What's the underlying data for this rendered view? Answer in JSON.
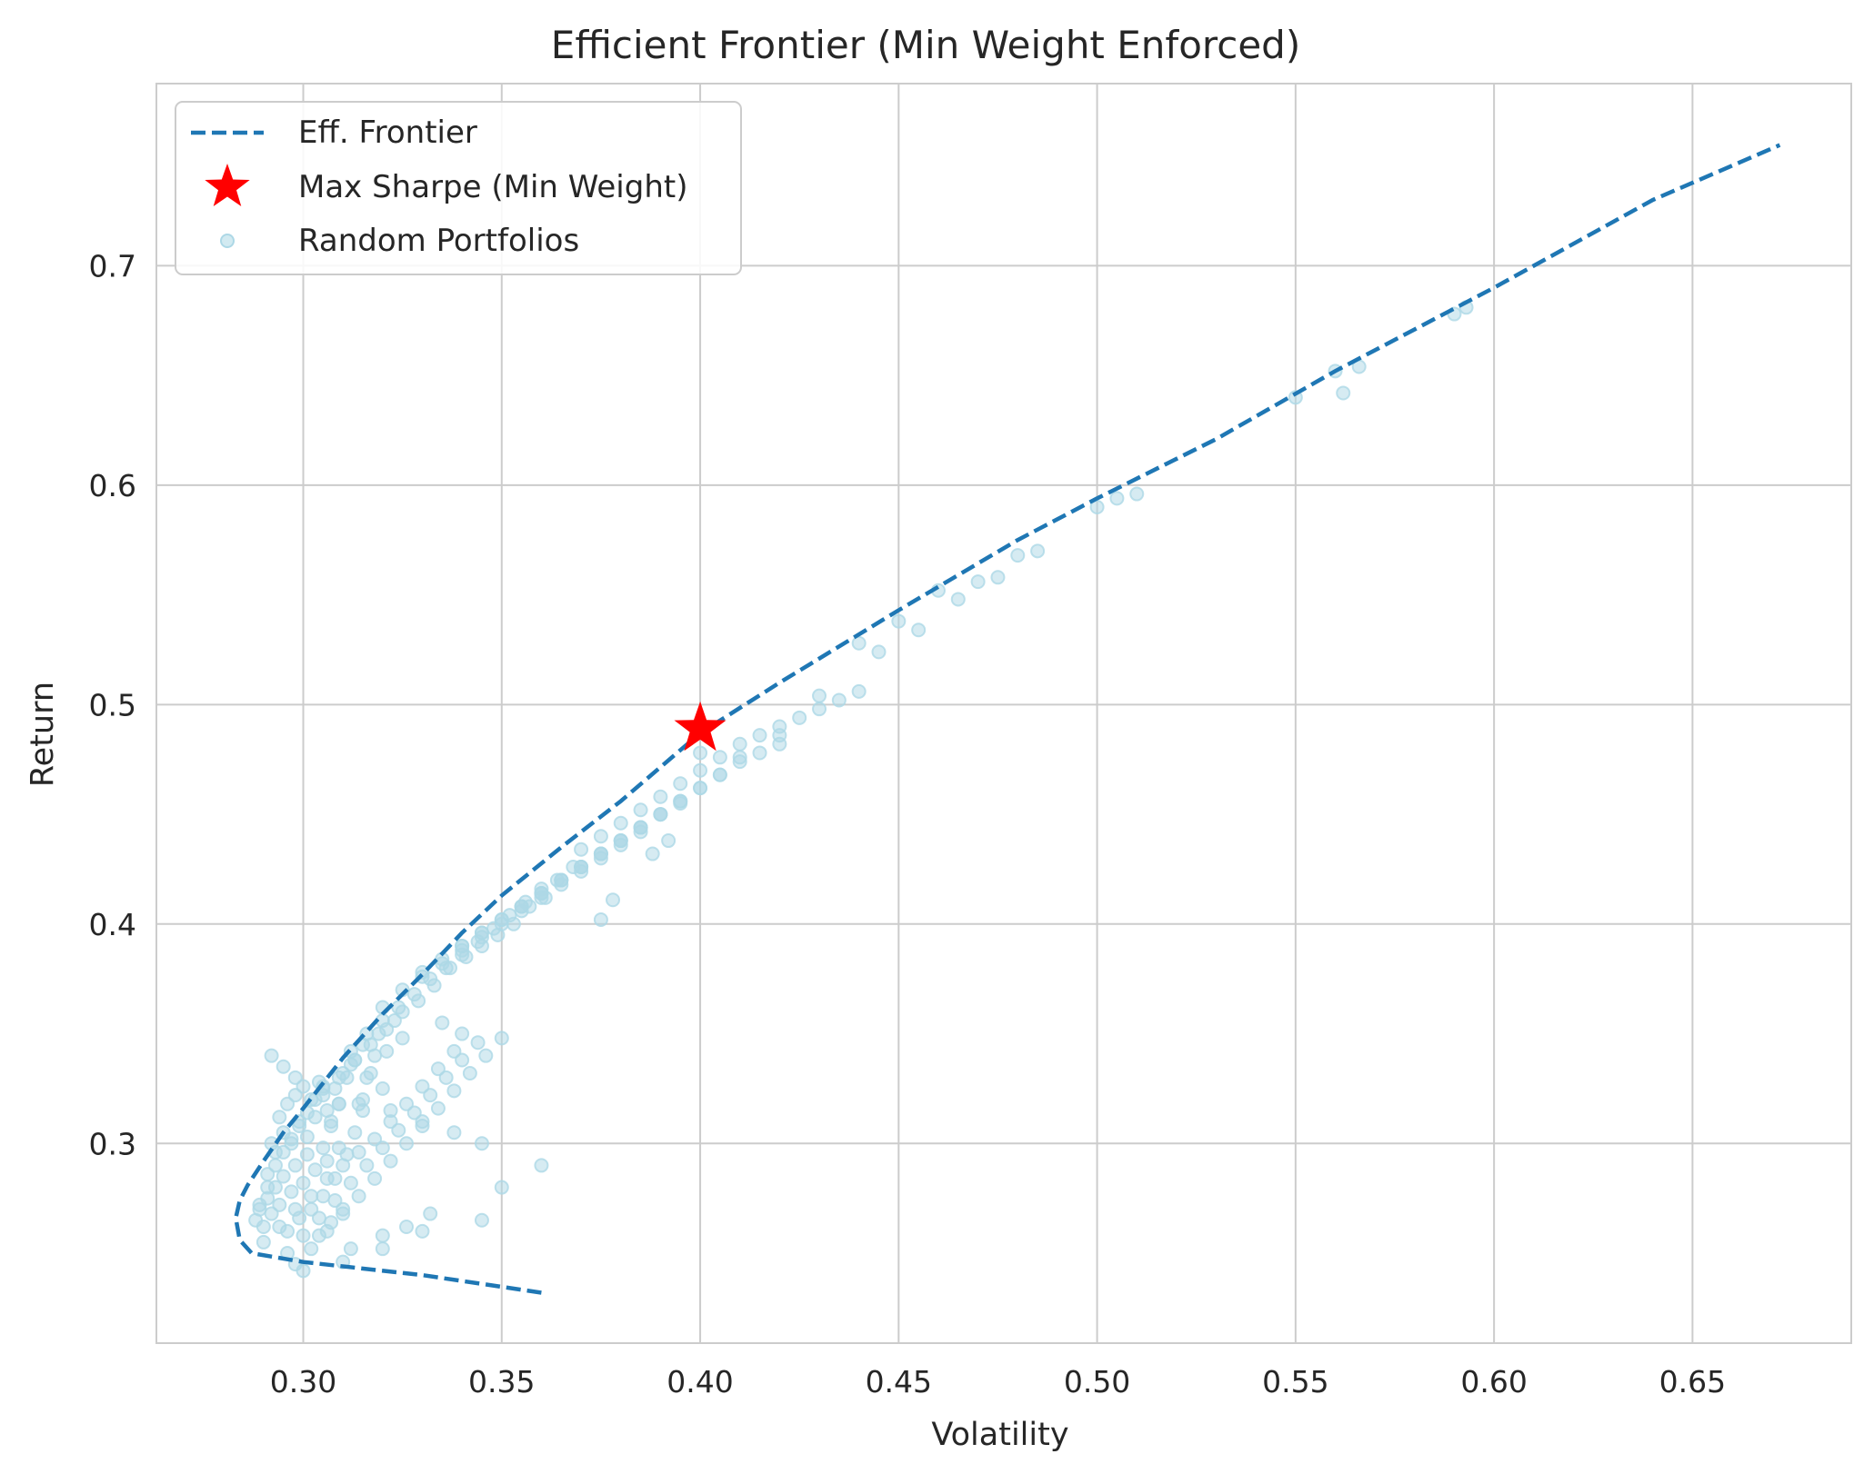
{
  "chart_data": {
    "type": "scatter",
    "title": "Efficient Frontier (Min Weight Enforced)",
    "xlabel": "Volatility",
    "ylabel": "Return",
    "xlim": [
      0.263,
      0.69
    ],
    "ylim": [
      0.209,
      0.783
    ],
    "xticks": [
      0.3,
      0.35,
      0.4,
      0.45,
      0.5,
      0.55,
      0.6,
      0.65
    ],
    "xtick_labels": [
      "0.30",
      "0.35",
      "0.40",
      "0.45",
      "0.50",
      "0.55",
      "0.60",
      "0.65"
    ],
    "yticks": [
      0.3,
      0.4,
      0.5,
      0.6,
      0.7
    ],
    "ytick_labels": [
      "0.3",
      "0.4",
      "0.5",
      "0.6",
      "0.7"
    ],
    "grid": true,
    "legend_position": "top-left",
    "legend": [
      {
        "label": "Eff. Frontier",
        "marker": "dashed-line",
        "color": "#1f77b4"
      },
      {
        "label": "Max Sharpe (Min Weight)",
        "marker": "star",
        "color": "#ff0000"
      },
      {
        "label": "Random Portfolios",
        "marker": "circle",
        "color": "#add8e6"
      }
    ],
    "series": [
      {
        "name": "Eff. Frontier",
        "kind": "line",
        "style": "dashed",
        "color": "#1f77b4",
        "x": [
          0.36,
          0.33,
          0.3,
          0.287,
          0.284,
          0.283,
          0.284,
          0.286,
          0.29,
          0.295,
          0.3,
          0.31,
          0.32,
          0.33,
          0.34,
          0.35,
          0.365,
          0.38,
          0.4,
          0.42,
          0.45,
          0.48,
          0.5,
          0.53,
          0.56,
          0.6,
          0.64,
          0.672
        ],
        "y": [
          0.232,
          0.24,
          0.246,
          0.25,
          0.256,
          0.266,
          0.274,
          0.281,
          0.292,
          0.305,
          0.316,
          0.339,
          0.359,
          0.377,
          0.396,
          0.413,
          0.435,
          0.456,
          0.487,
          0.51,
          0.543,
          0.575,
          0.594,
          0.621,
          0.652,
          0.69,
          0.73,
          0.755
        ]
      },
      {
        "name": "Max Sharpe (Min Weight)",
        "kind": "star",
        "color": "#ff0000",
        "x": [
          0.4
        ],
        "y": [
          0.489
        ]
      },
      {
        "name": "Random Portfolios",
        "kind": "scatter",
        "color": "#add8e6",
        "x": [
          0.288,
          0.289,
          0.29,
          0.291,
          0.292,
          0.293,
          0.294,
          0.295,
          0.296,
          0.297,
          0.298,
          0.299,
          0.3,
          0.301,
          0.302,
          0.303,
          0.304,
          0.305,
          0.306,
          0.307,
          0.308,
          0.309,
          0.31,
          0.291,
          0.293,
          0.295,
          0.297,
          0.299,
          0.301,
          0.303,
          0.305,
          0.307,
          0.309,
          0.311,
          0.313,
          0.315,
          0.292,
          0.294,
          0.296,
          0.298,
          0.3,
          0.302,
          0.304,
          0.306,
          0.308,
          0.31,
          0.312,
          0.314,
          0.316,
          0.318,
          0.32,
          0.289,
          0.291,
          0.293,
          0.295,
          0.297,
          0.299,
          0.301,
          0.303,
          0.305,
          0.307,
          0.309,
          0.311,
          0.313,
          0.315,
          0.317,
          0.319,
          0.321,
          0.323,
          0.325,
          0.29,
          0.294,
          0.298,
          0.302,
          0.306,
          0.31,
          0.314,
          0.318,
          0.322,
          0.326,
          0.33,
          0.334,
          0.338,
          0.296,
          0.3,
          0.304,
          0.308,
          0.312,
          0.316,
          0.32,
          0.324,
          0.328,
          0.332,
          0.336,
          0.34,
          0.344,
          0.298,
          0.302,
          0.306,
          0.31,
          0.314,
          0.318,
          0.322,
          0.326,
          0.33,
          0.334,
          0.338,
          0.342,
          0.346,
          0.35,
          0.305,
          0.309,
          0.313,
          0.317,
          0.321,
          0.325,
          0.329,
          0.333,
          0.337,
          0.341,
          0.345,
          0.349,
          0.353,
          0.357,
          0.361,
          0.312,
          0.316,
          0.32,
          0.324,
          0.328,
          0.332,
          0.336,
          0.34,
          0.344,
          0.348,
          0.352,
          0.356,
          0.36,
          0.364,
          0.368,
          0.32,
          0.325,
          0.33,
          0.335,
          0.34,
          0.345,
          0.35,
          0.355,
          0.36,
          0.365,
          0.37,
          0.375,
          0.38,
          0.385,
          0.33,
          0.335,
          0.34,
          0.345,
          0.35,
          0.355,
          0.36,
          0.365,
          0.37,
          0.375,
          0.38,
          0.385,
          0.39,
          0.395,
          0.34,
          0.345,
          0.35,
          0.355,
          0.36,
          0.365,
          0.37,
          0.375,
          0.38,
          0.385,
          0.39,
          0.395,
          0.4,
          0.405,
          0.355,
          0.36,
          0.365,
          0.37,
          0.375,
          0.38,
          0.385,
          0.39,
          0.395,
          0.4,
          0.405,
          0.41,
          0.415,
          0.42,
          0.37,
          0.375,
          0.38,
          0.385,
          0.39,
          0.395,
          0.4,
          0.405,
          0.41,
          0.415,
          0.42,
          0.425,
          0.43,
          0.435,
          0.44,
          0.4,
          0.41,
          0.42,
          0.43,
          0.44,
          0.45,
          0.46,
          0.47,
          0.445,
          0.455,
          0.465,
          0.475,
          0.48,
          0.485,
          0.5,
          0.505,
          0.51,
          0.55,
          0.56,
          0.562,
          0.566,
          0.59,
          0.593,
          0.3,
          0.31,
          0.32,
          0.33,
          0.345,
          0.35,
          0.36,
          0.345,
          0.338,
          0.33,
          0.322,
          0.315,
          0.305,
          0.298,
          0.295,
          0.292,
          0.332,
          0.326,
          0.32,
          0.312,
          0.34,
          0.335,
          0.375,
          0.378,
          0.388,
          0.392
        ],
        "y": [
          0.265,
          0.27,
          0.262,
          0.275,
          0.268,
          0.28,
          0.272,
          0.285,
          0.26,
          0.278,
          0.29,
          0.266,
          0.282,
          0.295,
          0.27,
          0.288,
          0.258,
          0.276,
          0.292,
          0.264,
          0.284,
          0.298,
          0.27,
          0.286,
          0.296,
          0.305,
          0.3,
          0.31,
          0.303,
          0.312,
          0.298,
          0.308,
          0.318,
          0.295,
          0.305,
          0.315,
          0.3,
          0.312,
          0.318,
          0.322,
          0.326,
          0.32,
          0.328,
          0.315,
          0.325,
          0.332,
          0.336,
          0.318,
          0.33,
          0.34,
          0.325,
          0.272,
          0.28,
          0.29,
          0.296,
          0.302,
          0.308,
          0.314,
          0.32,
          0.326,
          0.31,
          0.318,
          0.33,
          0.338,
          0.345,
          0.332,
          0.35,
          0.342,
          0.356,
          0.348,
          0.255,
          0.262,
          0.27,
          0.276,
          0.284,
          0.29,
          0.296,
          0.302,
          0.31,
          0.318,
          0.326,
          0.334,
          0.342,
          0.25,
          0.258,
          0.266,
          0.274,
          0.282,
          0.29,
          0.298,
          0.306,
          0.314,
          0.322,
          0.33,
          0.338,
          0.346,
          0.245,
          0.252,
          0.26,
          0.268,
          0.276,
          0.284,
          0.292,
          0.3,
          0.308,
          0.316,
          0.324,
          0.332,
          0.34,
          0.348,
          0.322,
          0.33,
          0.338,
          0.345,
          0.352,
          0.36,
          0.365,
          0.372,
          0.38,
          0.385,
          0.39,
          0.395,
          0.4,
          0.408,
          0.412,
          0.342,
          0.35,
          0.356,
          0.362,
          0.368,
          0.375,
          0.38,
          0.386,
          0.392,
          0.398,
          0.404,
          0.41,
          0.416,
          0.42,
          0.426,
          0.362,
          0.37,
          0.376,
          0.382,
          0.388,
          0.394,
          0.4,
          0.406,
          0.412,
          0.418,
          0.424,
          0.43,
          0.436,
          0.442,
          0.378,
          0.384,
          0.39,
          0.396,
          0.402,
          0.408,
          0.414,
          0.42,
          0.426,
          0.432,
          0.438,
          0.444,
          0.45,
          0.455,
          0.39,
          0.396,
          0.402,
          0.408,
          0.414,
          0.42,
          0.426,
          0.432,
          0.438,
          0.444,
          0.45,
          0.456,
          0.462,
          0.468,
          0.408,
          0.414,
          0.42,
          0.426,
          0.432,
          0.438,
          0.444,
          0.45,
          0.456,
          0.462,
          0.468,
          0.474,
          0.478,
          0.482,
          0.434,
          0.44,
          0.446,
          0.452,
          0.458,
          0.464,
          0.47,
          0.476,
          0.482,
          0.486,
          0.49,
          0.494,
          0.498,
          0.502,
          0.506,
          0.478,
          0.476,
          0.486,
          0.504,
          0.528,
          0.538,
          0.552,
          0.556,
          0.524,
          0.534,
          0.548,
          0.558,
          0.568,
          0.57,
          0.59,
          0.594,
          0.596,
          0.64,
          0.652,
          0.642,
          0.654,
          0.678,
          0.681,
          0.242,
          0.246,
          0.252,
          0.26,
          0.265,
          0.28,
          0.29,
          0.3,
          0.305,
          0.31,
          0.315,
          0.32,
          0.325,
          0.33,
          0.335,
          0.34,
          0.268,
          0.262,
          0.258,
          0.252,
          0.35,
          0.355,
          0.402,
          0.411,
          0.432,
          0.438
        ]
      }
    ]
  }
}
